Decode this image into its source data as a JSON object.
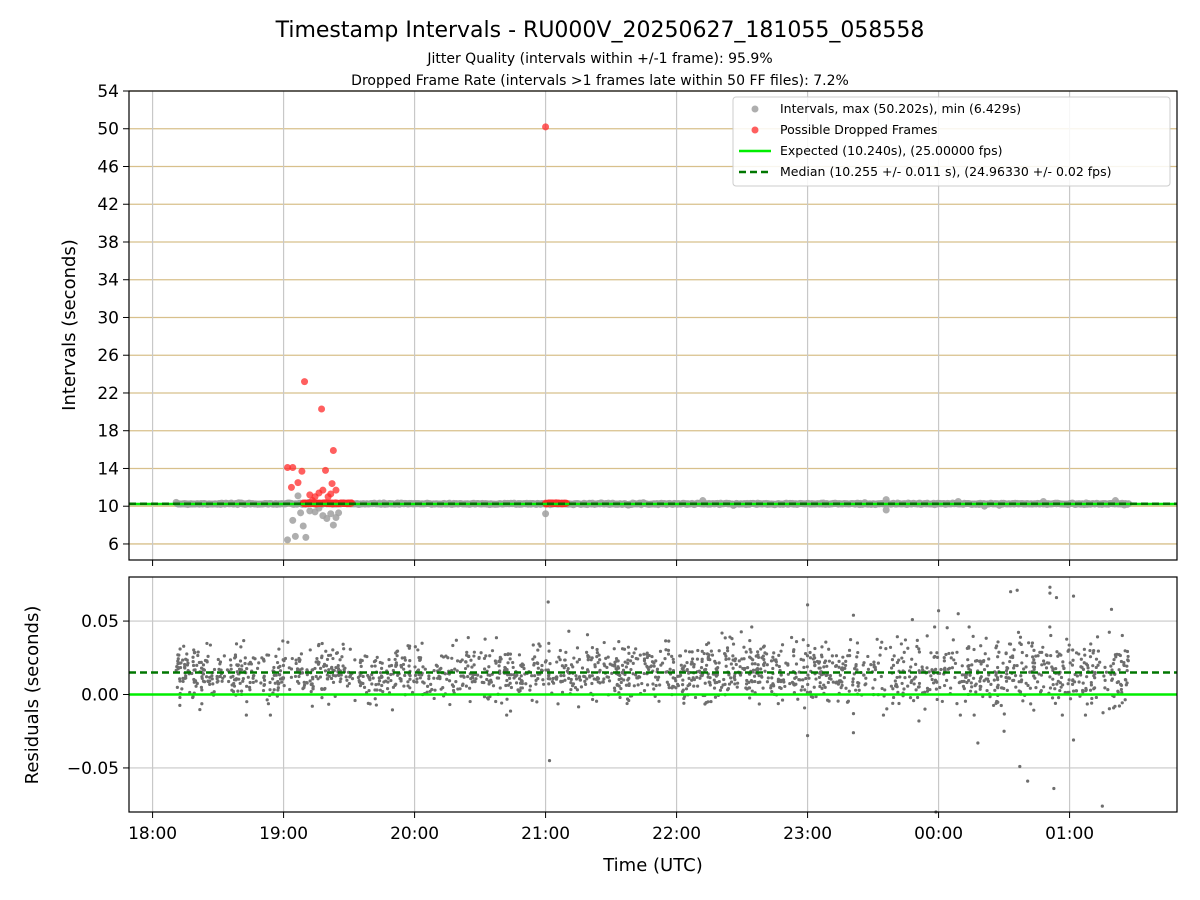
{
  "chart_data": [
    {
      "type": "scatter",
      "title": "Timestamp Intervals - RU000V_20250627_181055_058558",
      "subtitle_lines": [
        "Jitter Quality (intervals within +/-1 frame): 95.9%",
        "Dropped Frame Rate (intervals >1 frames late within 50 FF files): 7.2%"
      ],
      "xlabel": "",
      "ylabel": "Intervals (seconds)",
      "x_unit": "hours after 18:00 UTC",
      "xlim": [
        -0.18,
        7.82
      ],
      "ylim": [
        4.3,
        54
      ],
      "yticks": [
        6,
        10,
        14,
        18,
        22,
        26,
        30,
        34,
        38,
        42,
        46,
        50,
        54
      ],
      "xticks": [
        0,
        1,
        2,
        3,
        4,
        5,
        6,
        7
      ],
      "grid": true,
      "legend_position": "top-right",
      "legend": [
        "Intervals, max (50.202s), min (6.429s)",
        "Possible Dropped Frames",
        "Expected (10.240s), (25.00000 fps)",
        "Median (10.255 +/- 0.011 s), (24.96330 +/- 0.02 fps)"
      ],
      "expected": 10.24,
      "median": 10.255,
      "x_range": [
        0.18,
        7.45
      ],
      "intervals_outliers": [
        {
          "x": 1.03,
          "y": 6.43
        },
        {
          "x": 1.07,
          "y": 8.5
        },
        {
          "x": 1.09,
          "y": 6.8
        },
        {
          "x": 1.13,
          "y": 9.3
        },
        {
          "x": 1.15,
          "y": 7.9
        },
        {
          "x": 1.17,
          "y": 6.7
        },
        {
          "x": 1.11,
          "y": 11.1
        },
        {
          "x": 1.2,
          "y": 9.5
        },
        {
          "x": 1.24,
          "y": 9.4
        },
        {
          "x": 1.27,
          "y": 9.8
        },
        {
          "x": 1.3,
          "y": 9.0
        },
        {
          "x": 1.33,
          "y": 8.7
        },
        {
          "x": 1.36,
          "y": 9.2
        },
        {
          "x": 1.38,
          "y": 8.0
        },
        {
          "x": 1.4,
          "y": 8.8
        },
        {
          "x": 1.42,
          "y": 9.3
        },
        {
          "x": 3.0,
          "y": 9.2
        },
        {
          "x": 4.2,
          "y": 10.6
        },
        {
          "x": 5.6,
          "y": 10.7
        },
        {
          "x": 5.6,
          "y": 9.6
        },
        {
          "x": 6.15,
          "y": 10.5
        },
        {
          "x": 6.35,
          "y": 10.0
        },
        {
          "x": 6.8,
          "y": 10.5
        },
        {
          "x": 7.35,
          "y": 10.6
        }
      ],
      "dropped": [
        {
          "x": 1.03,
          "y": 14.1
        },
        {
          "x": 1.07,
          "y": 14.1
        },
        {
          "x": 1.06,
          "y": 12.0
        },
        {
          "x": 1.11,
          "y": 12.5
        },
        {
          "x": 1.14,
          "y": 13.7
        },
        {
          "x": 1.16,
          "y": 23.2
        },
        {
          "x": 1.2,
          "y": 11.2
        },
        {
          "x": 1.22,
          "y": 10.6
        },
        {
          "x": 1.24,
          "y": 11.0
        },
        {
          "x": 1.27,
          "y": 11.4
        },
        {
          "x": 1.29,
          "y": 20.3
        },
        {
          "x": 1.3,
          "y": 11.7
        },
        {
          "x": 1.32,
          "y": 13.8
        },
        {
          "x": 1.34,
          "y": 11.0
        },
        {
          "x": 1.36,
          "y": 11.3
        },
        {
          "x": 1.37,
          "y": 12.4
        },
        {
          "x": 1.38,
          "y": 15.9
        },
        {
          "x": 1.4,
          "y": 11.7
        },
        {
          "x": 3.0,
          "y": 50.2
        }
      ],
      "dropped_bands": [
        [
          1.15,
          1.52
        ],
        [
          3.0,
          3.16
        ]
      ]
    },
    {
      "type": "scatter",
      "xlabel": "Time (UTC)",
      "ylabel": "Residuals (seconds)",
      "x_unit": "hours after 18:00 UTC",
      "xlim": [
        -0.18,
        7.82
      ],
      "ylim": [
        -0.08,
        0.08
      ],
      "yticks": [
        -0.05,
        0.0,
        0.05
      ],
      "ytick_labels": [
        "−0.05",
        "0.00",
        "0.05"
      ],
      "xticks": [
        0,
        1,
        2,
        3,
        4,
        5,
        6,
        7
      ],
      "xtick_labels": [
        "18:00",
        "19:00",
        "20:00",
        "21:00",
        "22:00",
        "23:00",
        "00:00",
        "01:00"
      ],
      "grid": true,
      "expected_residual": 0.0,
      "median_residual": 0.015,
      "x_range": [
        0.18,
        7.45
      ],
      "residual_center": 0.015,
      "residual_spread": 0.011,
      "residual_outliers": [
        {
          "x": 3.02,
          "y": 0.063
        },
        {
          "x": 3.03,
          "y": -0.045
        },
        {
          "x": 5.0,
          "y": 0.061
        },
        {
          "x": 5.0,
          "y": -0.028
        },
        {
          "x": 5.35,
          "y": 0.054
        },
        {
          "x": 5.35,
          "y": -0.026
        },
        {
          "x": 5.85,
          "y": -0.018
        },
        {
          "x": 5.8,
          "y": 0.051
        },
        {
          "x": 6.0,
          "y": 0.057
        },
        {
          "x": 5.98,
          "y": -0.08
        },
        {
          "x": 6.15,
          "y": 0.055
        },
        {
          "x": 6.3,
          "y": -0.033
        },
        {
          "x": 6.5,
          "y": -0.025
        },
        {
          "x": 6.55,
          "y": 0.07
        },
        {
          "x": 6.6,
          "y": 0.071
        },
        {
          "x": 6.62,
          "y": -0.049
        },
        {
          "x": 6.68,
          "y": -0.059
        },
        {
          "x": 6.85,
          "y": 0.069
        },
        {
          "x": 6.85,
          "y": 0.073
        },
        {
          "x": 6.88,
          "y": -0.064
        },
        {
          "x": 7.03,
          "y": 0.067
        },
        {
          "x": 7.03,
          "y": -0.031
        },
        {
          "x": 7.25,
          "y": -0.076
        },
        {
          "x": 7.32,
          "y": 0.058
        },
        {
          "x": 6.9,
          "y": 0.066
        },
        {
          "x": 5.65,
          "y": -0.006
        }
      ]
    }
  ],
  "colors": {
    "intervals": "#a0a0a0",
    "dropped": "#ff2a2a",
    "expected": "#00ee00",
    "median": "#007700",
    "hgrid": "#d8c08c",
    "grid": "#c8c8c8",
    "residuals": "#6e6e6e"
  }
}
